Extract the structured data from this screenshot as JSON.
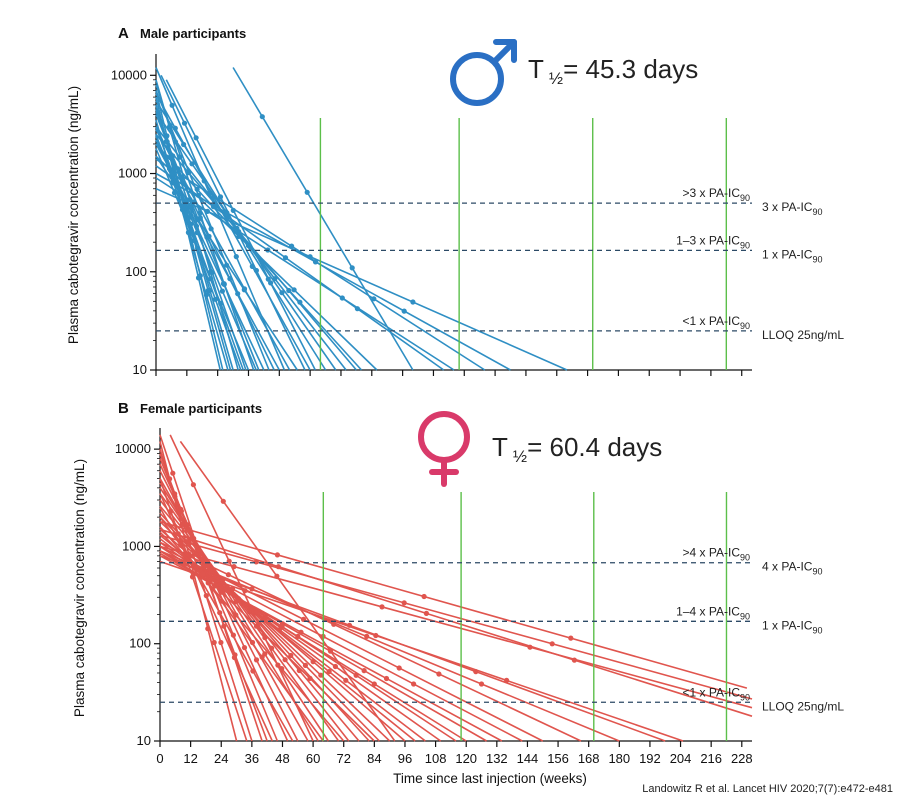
{
  "citation": "Landowitz R et al. Lancet HIV 2020;7(7):e472-e481",
  "x_axis_label": "Time since last injection (weeks)",
  "chart_data": [
    {
      "type": "line",
      "panel_letter": "A",
      "title": "Male participants",
      "ylabel": "Plasma cabotegravir concentration (ng/mL)",
      "yscale": "log",
      "ylim": [
        10,
        15000
      ],
      "yticks": [
        "10",
        "100",
        "1000",
        "10000"
      ],
      "xlim": [
        0,
        232
      ],
      "half_life": {
        "T": "T",
        "sub": "½",
        "value": "= 45.3 days"
      },
      "sex_symbol": "male-symbol-icon",
      "color": "#2f8fc4",
      "symbol_color": "#2a6fc4",
      "reference_lines": [
        {
          "y": 500,
          "left_label": ">3 x PA-IC",
          "left_sub": "90",
          "right_label": "3 x PA-IC",
          "right_sub": "90"
        },
        {
          "y": 165,
          "left_label": "1–3 x PA-IC",
          "left_sub": "90",
          "right_label": "1 x PA-IC",
          "right_sub": "90"
        },
        {
          "y": 25,
          "left_label": "<1 x PA-IC",
          "left_sub": "90",
          "right_label": "LLOQ 25ng/mL",
          "right_sub": ""
        }
      ],
      "vertical_lines_x": [
        64,
        118,
        170,
        222
      ],
      "series": [
        {
          "x": [
            0,
            50
          ],
          "y": [
            12000,
            10
          ]
        },
        {
          "x": [
            0,
            32
          ],
          "y": [
            9000,
            10
          ]
        },
        {
          "x": [
            0,
            38
          ],
          "y": [
            8000,
            10
          ]
        },
        {
          "x": [
            0,
            44
          ],
          "y": [
            7000,
            10
          ]
        },
        {
          "x": [
            0,
            25
          ],
          "y": [
            6000,
            10
          ]
        },
        {
          "x": [
            0,
            30
          ],
          "y": [
            5000,
            10
          ]
        },
        {
          "x": [
            0,
            35
          ],
          "y": [
            4500,
            10
          ]
        },
        {
          "x": [
            0,
            40
          ],
          "y": [
            4000,
            10
          ]
        },
        {
          "x": [
            0,
            28
          ],
          "y": [
            3500,
            10
          ]
        },
        {
          "x": [
            0,
            46
          ],
          "y": [
            3000,
            10
          ]
        },
        {
          "x": [
            0,
            52
          ],
          "y": [
            2800,
            10
          ]
        },
        {
          "x": [
            0,
            33
          ],
          "y": [
            2500,
            10
          ]
        },
        {
          "x": [
            0,
            42
          ],
          "y": [
            2200,
            10
          ]
        },
        {
          "x": [
            0,
            48
          ],
          "y": [
            2000,
            10
          ]
        },
        {
          "x": [
            0,
            36
          ],
          "y": [
            1800,
            10
          ]
        },
        {
          "x": [
            0,
            55
          ],
          "y": [
            1500,
            10
          ]
        },
        {
          "x": [
            2,
            58
          ],
          "y": [
            10000,
            10
          ]
        },
        {
          "x": [
            4,
            62
          ],
          "y": [
            9000,
            10
          ]
        },
        {
          "x": [
            0,
            60
          ],
          "y": [
            6500,
            10
          ]
        },
        {
          "x": [
            0,
            66
          ],
          "y": [
            5500,
            10
          ]
        },
        {
          "x": [
            0,
            70
          ],
          "y": [
            4200,
            10
          ]
        },
        {
          "x": [
            0,
            74
          ],
          "y": [
            3000,
            10
          ]
        },
        {
          "x": [
            0,
            78
          ],
          "y": [
            2500,
            10
          ]
        },
        {
          "x": [
            0,
            80
          ],
          "y": [
            2000,
            10
          ]
        },
        {
          "x": [
            0,
            86
          ],
          "y": [
            1500,
            10
          ]
        },
        {
          "x": [
            30,
            100
          ],
          "y": [
            12000,
            10
          ]
        },
        {
          "x": [
            0,
            112
          ],
          "y": [
            1200,
            10
          ]
        },
        {
          "x": [
            0,
            116
          ],
          "y": [
            900,
            10
          ]
        },
        {
          "x": [
            0,
            128
          ],
          "y": [
            1400,
            10
          ]
        },
        {
          "x": [
            0,
            138
          ],
          "y": [
            1000,
            10
          ]
        },
        {
          "x": [
            0,
            160
          ],
          "y": [
            700,
            10
          ]
        },
        {
          "x": [
            0,
            26
          ],
          "y": [
            7000,
            10
          ]
        },
        {
          "x": [
            0,
            29
          ],
          "y": [
            5000,
            10
          ]
        },
        {
          "x": [
            0,
            34
          ],
          "y": [
            3000,
            10
          ]
        },
        {
          "x": [
            0,
            39
          ],
          "y": [
            2400,
            10
          ]
        }
      ]
    },
    {
      "type": "line",
      "panel_letter": "B",
      "title": "Female participants",
      "ylabel": "Plasma cabotegravir concentration (ng/mL)",
      "yscale": "log",
      "ylim": [
        10,
        15000
      ],
      "yticks": [
        "10",
        "100",
        "1000",
        "10000"
      ],
      "xlim": [
        0,
        232
      ],
      "xticks": [
        "0",
        "12",
        "24",
        "36",
        "48",
        "60",
        "72",
        "84",
        "96",
        "108",
        "120",
        "132",
        "144",
        "156",
        "168",
        "180",
        "192",
        "204",
        "216",
        "228"
      ],
      "half_life": {
        "T": "T",
        "sub": "½",
        "value": "= 60.4 days"
      },
      "sex_symbol": "female-symbol-icon",
      "color": "#e0554e",
      "symbol_color": "#d93a6a",
      "reference_lines": [
        {
          "y": 680,
          "left_label": ">4 x PA-IC",
          "left_sub": "90",
          "right_label": "4 x PA-IC",
          "right_sub": "90"
        },
        {
          "y": 170,
          "left_label": "1–4 x PA-IC",
          "left_sub": "90",
          "right_label": "1 x PA-IC",
          "right_sub": "90"
        },
        {
          "y": 25,
          "left_label": "<1 x PA-IC",
          "left_sub": "90",
          "right_label": "LLOQ 25ng/mL",
          "right_sub": ""
        }
      ],
      "vertical_lines_x": [
        64,
        118,
        170,
        222
      ],
      "series": [
        {
          "x": [
            0,
            30
          ],
          "y": [
            12000,
            10
          ]
        },
        {
          "x": [
            0,
            36
          ],
          "y": [
            10000,
            10
          ]
        },
        {
          "x": [
            0,
            42
          ],
          "y": [
            9000,
            10
          ]
        },
        {
          "x": [
            0,
            46
          ],
          "y": [
            8000,
            10
          ]
        },
        {
          "x": [
            0,
            50
          ],
          "y": [
            7000,
            10
          ]
        },
        {
          "x": [
            0,
            54
          ],
          "y": [
            6000,
            10
          ]
        },
        {
          "x": [
            0,
            58
          ],
          "y": [
            5000,
            10
          ]
        },
        {
          "x": [
            0,
            62
          ],
          "y": [
            4500,
            10
          ]
        },
        {
          "x": [
            0,
            66
          ],
          "y": [
            4000,
            10
          ]
        },
        {
          "x": [
            0,
            70
          ],
          "y": [
            3500,
            10
          ]
        },
        {
          "x": [
            0,
            74
          ],
          "y": [
            3000,
            10
          ]
        },
        {
          "x": [
            0,
            78
          ],
          "y": [
            2600,
            10
          ]
        },
        {
          "x": [
            0,
            82
          ],
          "y": [
            2200,
            10
          ]
        },
        {
          "x": [
            0,
            86
          ],
          "y": [
            2000,
            10
          ]
        },
        {
          "x": [
            0,
            90
          ],
          "y": [
            1800,
            10
          ]
        },
        {
          "x": [
            0,
            96
          ],
          "y": [
            1500,
            10
          ]
        },
        {
          "x": [
            0,
            100
          ],
          "y": [
            1300,
            10
          ]
        },
        {
          "x": [
            0,
            104
          ],
          "y": [
            1200,
            10
          ]
        },
        {
          "x": [
            0,
            110
          ],
          "y": [
            1100,
            10
          ]
        },
        {
          "x": [
            0,
            116
          ],
          "y": [
            1000,
            10
          ]
        },
        {
          "x": [
            0,
            120
          ],
          "y": [
            900,
            10
          ]
        },
        {
          "x": [
            0,
            128
          ],
          "y": [
            850,
            10
          ]
        },
        {
          "x": [
            0,
            134
          ],
          "y": [
            800,
            10
          ]
        },
        {
          "x": [
            0,
            142
          ],
          "y": [
            900,
            10
          ]
        },
        {
          "x": [
            0,
            150
          ],
          "y": [
            1000,
            10
          ]
        },
        {
          "x": [
            0,
            165
          ],
          "y": [
            1100,
            10
          ]
        },
        {
          "x": [
            0,
            180
          ],
          "y": [
            900,
            10
          ]
        },
        {
          "x": [
            0,
            198
          ],
          "y": [
            800,
            10
          ]
        },
        {
          "x": [
            0,
            205
          ],
          "y": [
            700,
            10
          ]
        },
        {
          "x": [
            0,
            232
          ],
          "y": [
            1500,
            18
          ]
        },
        {
          "x": [
            0,
            232
          ],
          "y": [
            1000,
            22
          ]
        },
        {
          "x": [
            0,
            232
          ],
          "y": [
            1300,
            27
          ]
        },
        {
          "x": [
            0,
            230
          ],
          "y": [
            1800,
            35
          ]
        },
        {
          "x": [
            0,
            40
          ],
          "y": [
            14000,
            10
          ]
        },
        {
          "x": [
            4,
            60
          ],
          "y": [
            14000,
            10
          ]
        },
        {
          "x": [
            8,
            92
          ],
          "y": [
            12000,
            10
          ]
        },
        {
          "x": [
            0,
            34
          ],
          "y": [
            5000,
            10
          ]
        },
        {
          "x": [
            0,
            44
          ],
          "y": [
            3500,
            10
          ]
        },
        {
          "x": [
            0,
            52
          ],
          "y": [
            2500,
            10
          ]
        },
        {
          "x": [
            0,
            64
          ],
          "y": [
            2000,
            10
          ]
        },
        {
          "x": [
            0,
            72
          ],
          "y": [
            1600,
            10
          ]
        },
        {
          "x": [
            0,
            84
          ],
          "y": [
            1400,
            10
          ]
        }
      ]
    }
  ]
}
